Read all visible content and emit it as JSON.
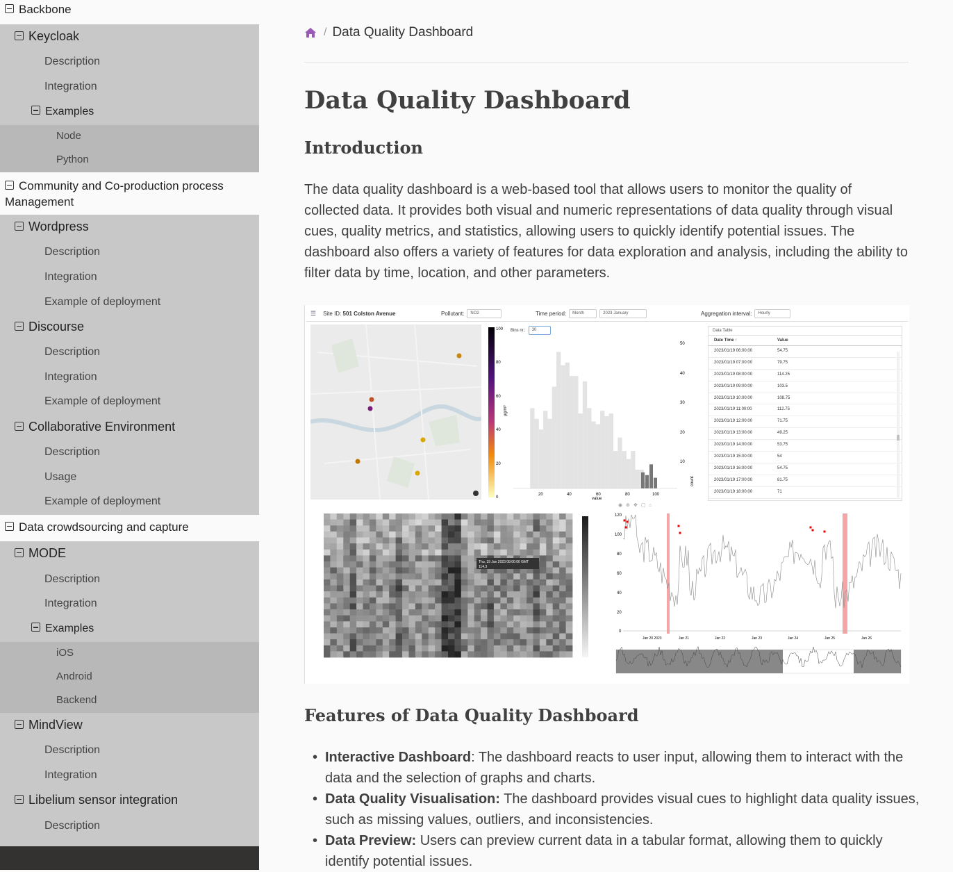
{
  "sidebar": {
    "backbone": "Backbone",
    "keycloak": "Keycloak",
    "keycloak_description": "Description",
    "keycloak_integration": "Integration",
    "keycloak_examples": "Examples",
    "keycloak_node": "Node",
    "keycloak_python": "Python",
    "community": "Community and Co-production process Management",
    "wordpress": "Wordpress",
    "wordpress_description": "Description",
    "wordpress_integration": "Integration",
    "wordpress_example": "Example of deployment",
    "discourse": "Discourse",
    "discourse_description": "Description",
    "discourse_integration": "Integration",
    "discourse_example": "Example of deployment",
    "collab": "Collaborative Environment",
    "collab_description": "Description",
    "collab_usage": "Usage",
    "collab_example": "Example of deployment",
    "crowdsourcing": "Data crowdsourcing and capture",
    "mode": "MODE",
    "mode_description": "Description",
    "mode_integration": "Integration",
    "mode_examples": "Examples",
    "mode_ios": "iOS",
    "mode_android": "Android",
    "mode_backend": "Backend",
    "mindview": "MindView",
    "mindview_description": "Description",
    "mindview_integration": "Integration",
    "libelium": "Libelium sensor integration",
    "libelium_description": "Description"
  },
  "breadcrumb": {
    "current": "Data Quality Dashboard"
  },
  "page": {
    "title": "Data Quality Dashboard",
    "intro_heading": "Introduction",
    "intro_text": "The data quality dashboard is a web-based tool that allows users to monitor the quality of collected data. It provides both visual and numeric representations of data quality through visual cues, quality metrics, and statistics, allowing users to quickly identify potential issues. The dashboard also offers a variety of features for data exploration and analysis, including the ability to filter data by time, location, and other parameters.",
    "features_heading": "Features of Data Quality Dashboard",
    "features": [
      {
        "title": "Interactive Dashboard",
        "text": ": The dashboard reacts to user input, allowing them to interact with the data and the selection of graphs and charts."
      },
      {
        "title": "Data Quality Visualisation:",
        "text": " The dashboard provides visual cues to highlight data quality issues, such as missing values, outliers, and inconsistencies."
      },
      {
        "title": "Data Preview:",
        "text": " Users can preview current data in a tabular format, allowing them to quickly identify potential issues."
      }
    ]
  },
  "dashboard": {
    "site_label": "Site ID:",
    "site_value": "501 Colston Avenue",
    "pollutant_label": "Pollutant:",
    "pollutant_value": "NO2",
    "time_label": "Time period:",
    "time_value": "Month",
    "date_value": "2023 January",
    "agg_label": "Aggregation interval:",
    "agg_value": "Hourly",
    "bins_label": "Bins nr.:",
    "bins_value": "30",
    "table_title": "Data Table",
    "table_headers": [
      "Date Time ↑",
      "Value"
    ],
    "table_rows": [
      [
        "2023/01/19 06:00:00",
        "54.75"
      ],
      [
        "2023/01/19 07:00:00",
        "79.75"
      ],
      [
        "2023/01/19 08:00:00",
        "114.25"
      ],
      [
        "2023/01/19 09:00:00",
        "103.5"
      ],
      [
        "2023/01/19 10:00:00",
        "108.75"
      ],
      [
        "2023/01/19 11:00:00",
        "112.75"
      ],
      [
        "2023/01/19 12:00:00",
        "71.75"
      ],
      [
        "2023/01/19 13:00:00",
        "49.25"
      ],
      [
        "2023/01/19 14:00:00",
        "53.75"
      ],
      [
        "2023/01/19 15:00:00",
        "54"
      ],
      [
        "2023/01/19 16:00:00",
        "54.75"
      ],
      [
        "2023/01/19 17:00:00",
        "81.75"
      ],
      [
        "2023/01/19 18:00:00",
        "71"
      ]
    ],
    "colorbar_unit": "µg/m³",
    "colorbar_ticks": [
      "100",
      "80",
      "60",
      "40",
      "20",
      "0"
    ],
    "hist_xlabel": "value",
    "hist_ylabel": "count",
    "hist_xticks": [
      "20",
      "40",
      "60",
      "80",
      "100"
    ],
    "hist_yticks": [
      "50",
      "40",
      "30",
      "20",
      "10"
    ],
    "heatmap_tooltip_line1": "Thu, 19 Jan 2023 08:00:00 GMT",
    "heatmap_tooltip_line2": "114.3",
    "line_yticks": [
      "120",
      "100",
      "80",
      "60",
      "40",
      "20",
      "0"
    ],
    "line_xticks": [
      "Jan 20\n2023",
      "Jan 21",
      "Jan 22",
      "Jan 23",
      "Jan 24",
      "Jan 25",
      "Jan 26"
    ]
  },
  "chart_data": {
    "type": "bar",
    "xlabel": "value",
    "ylabel": "count",
    "x": [
      18,
      21,
      24,
      27,
      30,
      33,
      36,
      39,
      42,
      45,
      48,
      51,
      54,
      57,
      60,
      63,
      66,
      69,
      72,
      75,
      78,
      81,
      84,
      87,
      90,
      93,
      96
    ],
    "values": [
      30,
      26,
      22,
      29,
      26,
      38,
      51,
      46,
      47,
      42,
      42,
      28,
      40,
      30,
      25,
      24,
      29,
      27,
      28,
      14,
      19,
      14,
      11,
      14,
      7,
      7,
      2
    ],
    "ylim": [
      0,
      55
    ]
  },
  "colors": {
    "accent": "#9b59b6",
    "sidebar_gray": "#c8c8c8",
    "sidebar_dark_gray": "#b8b8b8",
    "alert": "#f4a6a6"
  }
}
